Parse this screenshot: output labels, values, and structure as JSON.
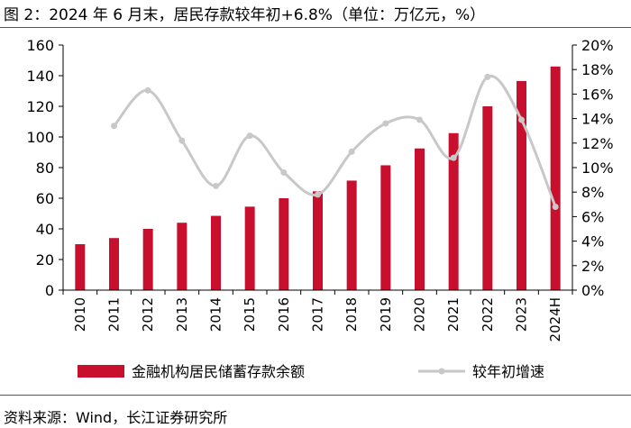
{
  "title": "图 2：2024 年 6 月末，居民存款较年初+6.8%（单位：万亿元，%）",
  "source": "资料来源：Wind，长江证券研究所",
  "chart_data": {
    "type": "bar",
    "categories": [
      "2010",
      "2011",
      "2012",
      "2013",
      "2014",
      "2015",
      "2016",
      "2017",
      "2018",
      "2019",
      "2020",
      "2021",
      "2022",
      "2023",
      "2024H"
    ],
    "series": [
      {
        "name": "金融机构居民储蓄存款余额",
        "type": "bar",
        "axis": "left",
        "color": "#c8102e",
        "values": [
          30,
          34,
          40,
          44,
          48.5,
          54.5,
          60,
          64.5,
          71.5,
          81.5,
          92.5,
          102.5,
          120,
          136.5,
          146
        ]
      },
      {
        "name": "较年初增速",
        "type": "line",
        "axis": "right",
        "color": "#c8c8c8",
        "values": [
          null,
          13.4,
          16.3,
          12.2,
          8.5,
          12.6,
          9.6,
          7.8,
          11.3,
          13.6,
          13.9,
          10.8,
          17.4,
          13.9,
          6.8
        ]
      }
    ],
    "y_left": {
      "min": 0,
      "max": 160,
      "ticks": [
        "0",
        "20",
        "40",
        "60",
        "80",
        "100",
        "120",
        "140",
        "160"
      ]
    },
    "y_right": {
      "min": 0,
      "max": 20,
      "ticks": [
        "0%",
        "2%",
        "4%",
        "6%",
        "8%",
        "10%",
        "12%",
        "14%",
        "16%",
        "18%",
        "20%"
      ]
    },
    "legend": "bottom",
    "grid": false
  }
}
